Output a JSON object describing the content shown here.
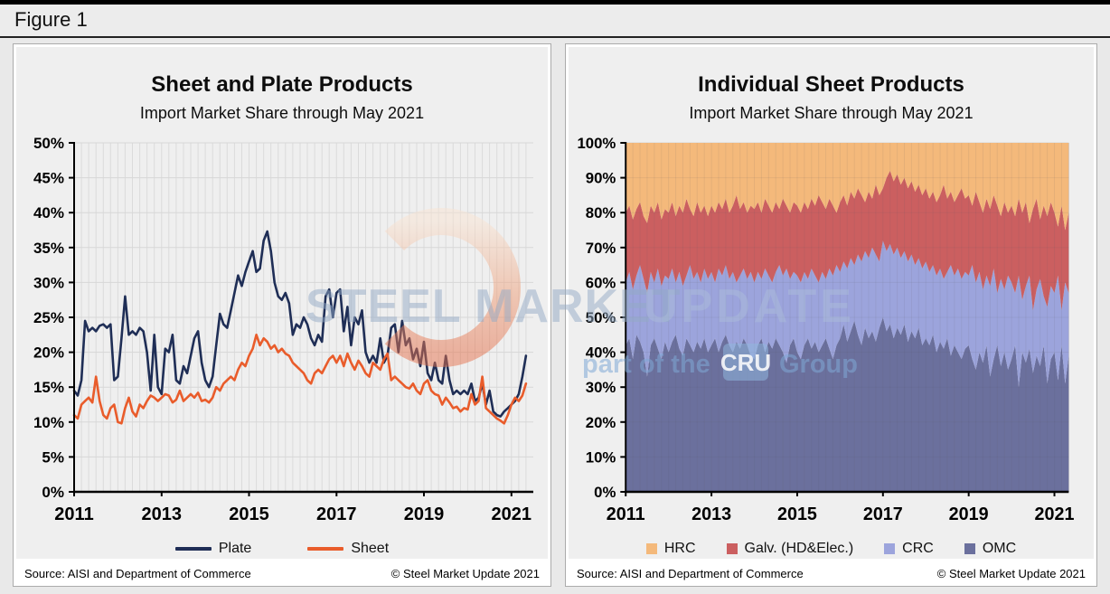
{
  "figure": {
    "label": "Figure 1"
  },
  "watermark": {
    "brand_bold": "STEEL MARKET",
    "brand_light": "UPDATE",
    "tagline_pre": "part of the",
    "tagline_box": "CRU",
    "tagline_post": "Group"
  },
  "chart_data": [
    {
      "type": "line",
      "title": "Sheet and Plate Products",
      "subtitle": "Import Market Share through May 2021",
      "xlabel": "",
      "ylabel": "",
      "ylim": [
        0,
        50
      ],
      "grid": true,
      "legend_position": "bottom",
      "y_tick_labels": [
        "50%",
        "45%",
        "40%",
        "35%",
        "30%",
        "25%",
        "20%",
        "15%",
        "10%",
        "5%",
        "0%"
      ],
      "x_tick_labels": [
        "2011",
        "2013",
        "2015",
        "2017",
        "2019",
        "2021"
      ],
      "x_unit": "monthly Jan 2011 - May 2021",
      "legend": [
        {
          "label": "Plate",
          "color": "#1F2E56"
        },
        {
          "label": "Sheet",
          "color": "#E95C2B"
        }
      ],
      "series": [
        {
          "name": "Plate",
          "color": "#1F2E56",
          "values": [
            14.5,
            13.8,
            16,
            24.5,
            23,
            23.5,
            23,
            23.8,
            24,
            23.5,
            24,
            16,
            16.5,
            22,
            28,
            22.5,
            23,
            22.5,
            23.5,
            23,
            20,
            14.5,
            22.5,
            15,
            14,
            20.5,
            20,
            22.5,
            16,
            15.5,
            18,
            17,
            19.5,
            22,
            23,
            18.5,
            16,
            15,
            16.5,
            21,
            25.5,
            24,
            23.5,
            26,
            28.5,
            31,
            29.5,
            31.5,
            33,
            34.5,
            31.5,
            32,
            36,
            37.3,
            34.5,
            30,
            28,
            27.5,
            28.5,
            27,
            22.5,
            24,
            23.5,
            25,
            24,
            22,
            21,
            22.5,
            21.5,
            28,
            29,
            25,
            28.5,
            29,
            23,
            26.5,
            21,
            25,
            24,
            26,
            20,
            18.5,
            19.5,
            18.5,
            22,
            18.5,
            19.5,
            23.5,
            24,
            20,
            24.5,
            21,
            22,
            19,
            20.5,
            18,
            21.5,
            17,
            16,
            18.5,
            16,
            15.5,
            19.5,
            16,
            14,
            14.5,
            14,
            14.5,
            14,
            15.5,
            13,
            13.5,
            15.5,
            12.5,
            14.5,
            11.5,
            11,
            10.8,
            11.5,
            12,
            12.5,
            13,
            14,
            16.5,
            19.5
          ]
        },
        {
          "name": "Sheet",
          "color": "#E95C2B",
          "values": [
            11,
            10.5,
            12.5,
            13,
            13.5,
            12.8,
            16.5,
            13,
            11,
            10.5,
            12,
            12.5,
            10,
            9.8,
            12,
            13.5,
            11.5,
            10.8,
            12.5,
            12,
            13,
            13.8,
            13.5,
            13,
            13.5,
            14,
            13.8,
            12.8,
            13.2,
            14.5,
            13,
            13.5,
            14,
            13.5,
            14.2,
            13,
            13.2,
            12.8,
            13.5,
            15,
            14.5,
            15.5,
            16,
            16.5,
            16,
            17.5,
            18.5,
            18,
            19.5,
            20.5,
            22.5,
            21,
            22,
            21.5,
            20.5,
            21,
            20,
            20.5,
            19.8,
            19.5,
            18.5,
            18,
            17.5,
            17,
            16,
            15.5,
            17,
            17.5,
            17,
            18,
            19,
            19.5,
            18.5,
            19.5,
            18,
            19.8,
            18.5,
            17.5,
            18.8,
            18,
            17,
            16.5,
            18.5,
            18,
            17.5,
            19,
            19.8,
            16,
            16.5,
            16,
            15.5,
            15,
            14.8,
            15.5,
            14.5,
            14,
            15.5,
            16,
            14.5,
            14,
            13.8,
            12.5,
            13.5,
            12.8,
            12,
            12.2,
            11.5,
            12,
            11.8,
            14,
            12.5,
            13,
            16.5,
            12,
            11.5,
            11,
            10.5,
            10.2,
            9.8,
            11,
            12.5,
            13.5,
            13,
            13.8,
            15.5
          ]
        }
      ],
      "source": "Source: AISI and Department of Commerce",
      "copyright": "© Steel Market Update 2021"
    },
    {
      "type": "area",
      "title": "Individual Sheet Products",
      "subtitle": "Import Market Share through May 2021",
      "xlabel": "",
      "ylabel": "",
      "ylim": [
        0,
        100
      ],
      "grid": true,
      "stacked": true,
      "legend_position": "bottom",
      "y_tick_labels": [
        "100%",
        "90%",
        "80%",
        "70%",
        "60%",
        "50%",
        "40%",
        "30%",
        "20%",
        "10%",
        "0%"
      ],
      "x_tick_labels": [
        "2011",
        "2013",
        "2015",
        "2017",
        "2019",
        "2021"
      ],
      "x_unit": "monthly Jan 2011 - May 2021",
      "legend": [
        {
          "label": "HRC",
          "color": "#F4B97B"
        },
        {
          "label": "Galv. (HD&Elec.)",
          "color": "#CB5F60"
        },
        {
          "label": "CRC",
          "color": "#9CA4DC"
        },
        {
          "label": "OMC",
          "color": "#6B709D"
        }
      ],
      "series": [
        {
          "name": "OMC",
          "color": "#6B709D",
          "values": [
            42,
            44,
            38,
            45,
            43,
            40,
            33,
            42,
            44,
            41,
            38,
            43,
            40,
            43,
            45,
            41,
            39,
            44,
            42,
            40,
            43,
            41,
            44,
            40,
            42,
            44,
            40,
            43,
            45,
            42,
            40,
            43,
            41,
            44,
            42,
            39,
            38,
            42,
            44,
            40,
            43,
            41,
            44,
            42,
            40,
            37,
            42,
            44,
            40,
            38,
            42,
            44,
            41,
            43,
            40,
            42,
            44,
            41,
            38,
            42,
            44,
            48,
            43,
            46,
            49,
            45,
            42,
            47,
            44,
            46,
            43,
            47,
            50,
            46,
            48,
            44,
            47,
            45,
            48,
            43,
            46,
            44,
            47,
            42,
            44,
            42,
            45,
            40,
            43,
            41,
            44,
            39,
            42,
            40,
            38,
            41,
            42,
            38,
            35,
            40,
            37,
            42,
            33,
            38,
            42,
            36,
            40,
            35,
            38,
            42,
            30,
            40,
            37,
            41,
            34,
            39,
            36,
            42,
            31,
            38,
            40,
            32,
            42,
            31,
            39
          ]
        },
        {
          "name": "CRC",
          "color": "#9CA4DC",
          "values": [
            18,
            19,
            20,
            17,
            22,
            21,
            24,
            21,
            16,
            23,
            21,
            19,
            21,
            21,
            15,
            22,
            20,
            18,
            23,
            21,
            20,
            19,
            20,
            21,
            21,
            16,
            24,
            19,
            20,
            19,
            23,
            17,
            21,
            20,
            19,
            24,
            22,
            21,
            17,
            24,
            19,
            19,
            19,
            23,
            22,
            27,
            19,
            19,
            22,
            22,
            21,
            17,
            23,
            19,
            20,
            21,
            17,
            23,
            24,
            23,
            19,
            18,
            21,
            21,
            16,
            23,
            24,
            22,
            23,
            24,
            25,
            19,
            22,
            23,
            23,
            24,
            23,
            22,
            21,
            23,
            22,
            21,
            20,
            22,
            22,
            21,
            20,
            22,
            21,
            20,
            19,
            26,
            20,
            24,
            23,
            22,
            20,
            27,
            25,
            23,
            21,
            20,
            26,
            26,
            15,
            25,
            18,
            27,
            22,
            15,
            32,
            15,
            22,
            21,
            18,
            19,
            25,
            14,
            22,
            21,
            17,
            30,
            10,
            29,
            18
          ]
        },
        {
          "name": "Galv. (HD&Elec.)",
          "color": "#CB5F60",
          "values": [
            20,
            19,
            20,
            19,
            18,
            18,
            20,
            19,
            20,
            19,
            19,
            19,
            19,
            19,
            19,
            19,
            21,
            22,
            16,
            18,
            20,
            20,
            18,
            18,
            19,
            20,
            19,
            19,
            19,
            19,
            19,
            25,
            19,
            19,
            19,
            19,
            21,
            20,
            19,
            20,
            20,
            20,
            20,
            16,
            22,
            18,
            19,
            20,
            20,
            20,
            20,
            20,
            20,
            20,
            25,
            20,
            20,
            20,
            20,
            15,
            20,
            19,
            18,
            19,
            19,
            19,
            19,
            14,
            19,
            14,
            20,
            19,
            15,
            21,
            21,
            21,
            21,
            21,
            21,
            21,
            21,
            21,
            21,
            21,
            21,
            21,
            21,
            21,
            21,
            27,
            21,
            21,
            21,
            21,
            26,
            21,
            23,
            17,
            26,
            20,
            22,
            22,
            22,
            21,
            25,
            18,
            25,
            18,
            22,
            22,
            22,
            25,
            24,
            15,
            29,
            26,
            17,
            26,
            26,
            24,
            23,
            14,
            30,
            15,
            23
          ]
        },
        {
          "name": "HRC",
          "color": "#F4B97B",
          "values": [
            20,
            18,
            22,
            19,
            17,
            21,
            23,
            18,
            20,
            17,
            22,
            19,
            20,
            17,
            21,
            18,
            20,
            16,
            19,
            21,
            17,
            20,
            18,
            21,
            18,
            20,
            17,
            19,
            16,
            20,
            18,
            15,
            19,
            17,
            20,
            18,
            19,
            17,
            20,
            16,
            18,
            20,
            17,
            19,
            16,
            18,
            20,
            17,
            18,
            20,
            17,
            19,
            16,
            18,
            15,
            17,
            19,
            16,
            18,
            20,
            17,
            15,
            18,
            14,
            16,
            13,
            15,
            17,
            14,
            16,
            12,
            15,
            13,
            10,
            8,
            11,
            9,
            12,
            10,
            13,
            11,
            14,
            12,
            15,
            13,
            16,
            14,
            17,
            15,
            12,
            16,
            14,
            17,
            15,
            13,
            16,
            15,
            18,
            14,
            17,
            20,
            16,
            19,
            15,
            18,
            21,
            17,
            20,
            18,
            21,
            16,
            20,
            17,
            23,
            19,
            16,
            22,
            18,
            21,
            17,
            20,
            24,
            18,
            25,
            20
          ]
        }
      ],
      "source": "Source: AISI and Department of Commerce",
      "copyright": "© Steel Market Update 2021"
    }
  ]
}
